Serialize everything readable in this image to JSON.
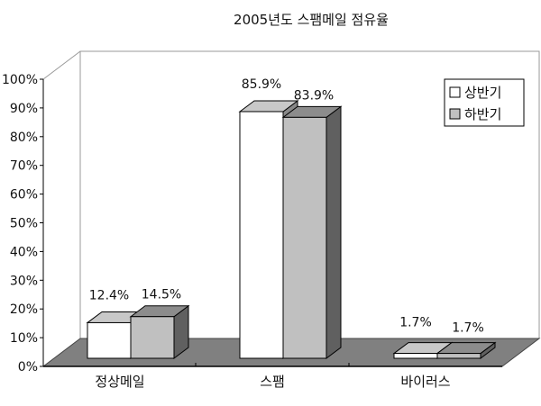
{
  "chart_data": {
    "type": "bar",
    "style": "3d-clustered",
    "title": "2005년도 스팸메일 점유율",
    "categories": [
      "정상메일",
      "스팸",
      "바이러스"
    ],
    "series": [
      {
        "name": "상반기",
        "values": [
          12.4,
          85.9,
          1.7
        ],
        "labels": [
          "12.4%",
          "85.9%",
          "1.7%"
        ],
        "color": "#ffffff"
      },
      {
        "name": "하반기",
        "values": [
          14.5,
          83.9,
          1.7
        ],
        "labels": [
          "14.5%",
          "83.9%",
          "1.7%"
        ],
        "color": "#c0c0c0"
      }
    ],
    "yticks": [
      "0%",
      "10%",
      "20%",
      "30%",
      "40%",
      "50%",
      "60%",
      "70%",
      "80%",
      "90%",
      "100%"
    ],
    "ylim": [
      0,
      100
    ],
    "grid": false,
    "legend": "top-right",
    "floor_color": "#808080"
  }
}
